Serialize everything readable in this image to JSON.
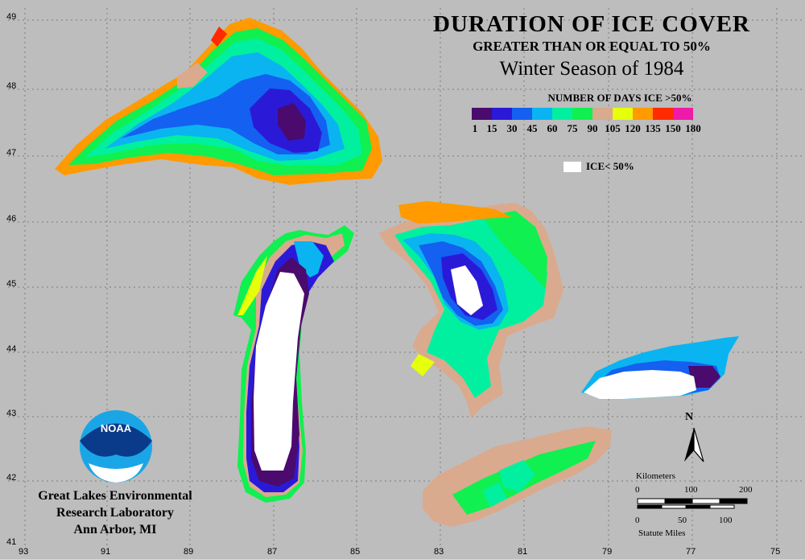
{
  "title": {
    "line1": "DURATION OF ICE COVER",
    "line2": "GREATER THAN OR EQUAL TO 50%",
    "line3": "Winter Season of 1984"
  },
  "legend": {
    "title": "NUMBER OF DAYS ICE >50%",
    "colors": [
      "#4a0a6e",
      "#2a1ad8",
      "#1460f0",
      "#0ab4f0",
      "#00f0a0",
      "#10f050",
      "#d9aa8e",
      "#e6ff0a",
      "#ff9a00",
      "#ff2a00",
      "#ee1aa8"
    ],
    "ticks": [
      "1",
      "15",
      "30",
      "45",
      "60",
      "75",
      "90",
      "105",
      "120",
      "135",
      "150",
      "180"
    ],
    "ice_label": "ICE< 50%"
  },
  "lab": {
    "line1": "Great Lakes Environmental",
    "line2": "Research Laboratory",
    "line3": "Ann Arbor, MI"
  },
  "logo_text": "NOAA",
  "axes": {
    "longitudes": [
      "93",
      "91",
      "89",
      "87",
      "85",
      "83",
      "81",
      "79",
      "77",
      "75"
    ],
    "latitudes": [
      "49",
      "48",
      "47",
      "46",
      "45",
      "44",
      "43",
      "42",
      "41"
    ]
  },
  "north_label": "N",
  "scale": {
    "km_title": "Kilometers",
    "km_ticks": [
      "0",
      "100",
      "200"
    ],
    "mi_ticks": [
      "0",
      "50",
      "100"
    ],
    "mi_title": "Statute Miles"
  }
}
